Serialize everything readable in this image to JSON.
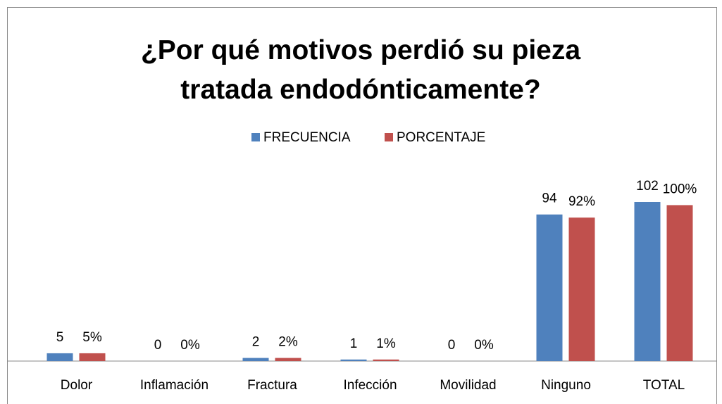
{
  "chart_data": {
    "type": "bar",
    "title": "¿Por qué motivos perdió su pieza tratada endodónticamente?",
    "categories": [
      "Dolor",
      "Inflamación",
      "Fractura",
      "Infección",
      "Movilidad",
      "Ninguno",
      "TOTAL"
    ],
    "series": [
      {
        "name": "FRECUENCIA",
        "color": "#4f81bd",
        "values": [
          5,
          0,
          2,
          1,
          0,
          94,
          102
        ]
      },
      {
        "name": "PORCENTAJE",
        "color": "#c0504d",
        "values": [
          5,
          0,
          2,
          1,
          0,
          92,
          100
        ],
        "value_labels": [
          "5%",
          "0%",
          "2%",
          "1%",
          "0%",
          "92%",
          "100%"
        ]
      }
    ],
    "legend": "top"
  }
}
